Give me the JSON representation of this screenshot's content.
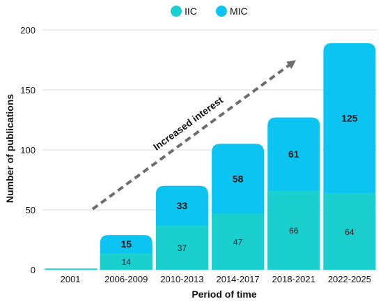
{
  "chart_data": {
    "type": "bar",
    "stacked": true,
    "categories": [
      "2001",
      "2006-2009",
      "2010-2013",
      "2014-2017",
      "2018-2021",
      "2022-2025"
    ],
    "series": [
      {
        "name": "IIC",
        "color": "#1ccfcf",
        "values": [
          1,
          14,
          37,
          47,
          66,
          64
        ],
        "labels": [
          "",
          "14",
          "37",
          "47",
          "66",
          "64"
        ]
      },
      {
        "name": "MIC",
        "color": "#0bc4f2",
        "values": [
          0,
          15,
          33,
          58,
          61,
          125
        ],
        "labels": [
          "",
          "15",
          "33",
          "58",
          "61",
          "125"
        ]
      }
    ],
    "xlabel": "Period of time",
    "ylabel": "Number of publications",
    "ylim": [
      0,
      200
    ],
    "yticks": [
      "0",
      "50",
      "100",
      "150",
      "200"
    ],
    "grid": true,
    "legend_position": "top-center",
    "annotation": {
      "text": "Increased interest",
      "color": "#6d6d6d"
    }
  }
}
